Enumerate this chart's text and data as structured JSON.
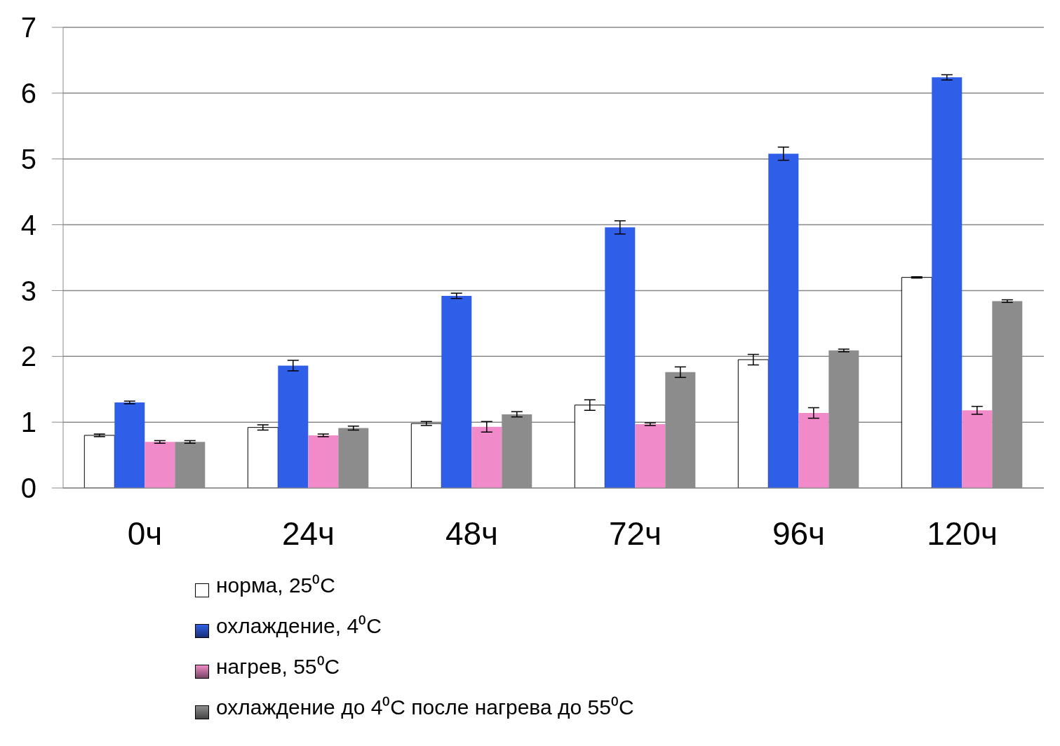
{
  "chart_data": {
    "type": "bar",
    "categories": [
      "0ч",
      "24ч",
      "48ч",
      "72ч",
      "96ч",
      "120ч"
    ],
    "series": [
      {
        "name": "норма, 25⁰C",
        "color": "#ffffff",
        "values": [
          0.8,
          0.92,
          0.98,
          1.26,
          1.95,
          3.2
        ],
        "errors": [
          0.02,
          0.04,
          0.03,
          0.08,
          0.08,
          0.01
        ]
      },
      {
        "name": "охлаждение, 4⁰C",
        "color": "#2f5fe8",
        "values": [
          1.3,
          1.86,
          2.92,
          3.96,
          5.08,
          6.24
        ],
        "errors": [
          0.02,
          0.08,
          0.04,
          0.1,
          0.1,
          0.04
        ]
      },
      {
        "name": "нагрев, 55⁰C",
        "color": "#f08ac8",
        "values": [
          0.7,
          0.8,
          0.93,
          0.97,
          1.14,
          1.18
        ],
        "errors": [
          0.02,
          0.02,
          0.08,
          0.02,
          0.08,
          0.06
        ]
      },
      {
        "name": "охлаждение до 4⁰C после нагрева до 55⁰C",
        "color": "#8c8c8c",
        "values": [
          0.7,
          0.91,
          1.12,
          1.76,
          2.09,
          2.84
        ],
        "errors": [
          0.02,
          0.03,
          0.04,
          0.08,
          0.02,
          0.02
        ]
      }
    ],
    "ylim": [
      0,
      7
    ],
    "yticks": [
      0,
      1,
      2,
      3,
      4,
      5,
      6,
      7
    ],
    "grid": "y",
    "legend": "bottom"
  }
}
